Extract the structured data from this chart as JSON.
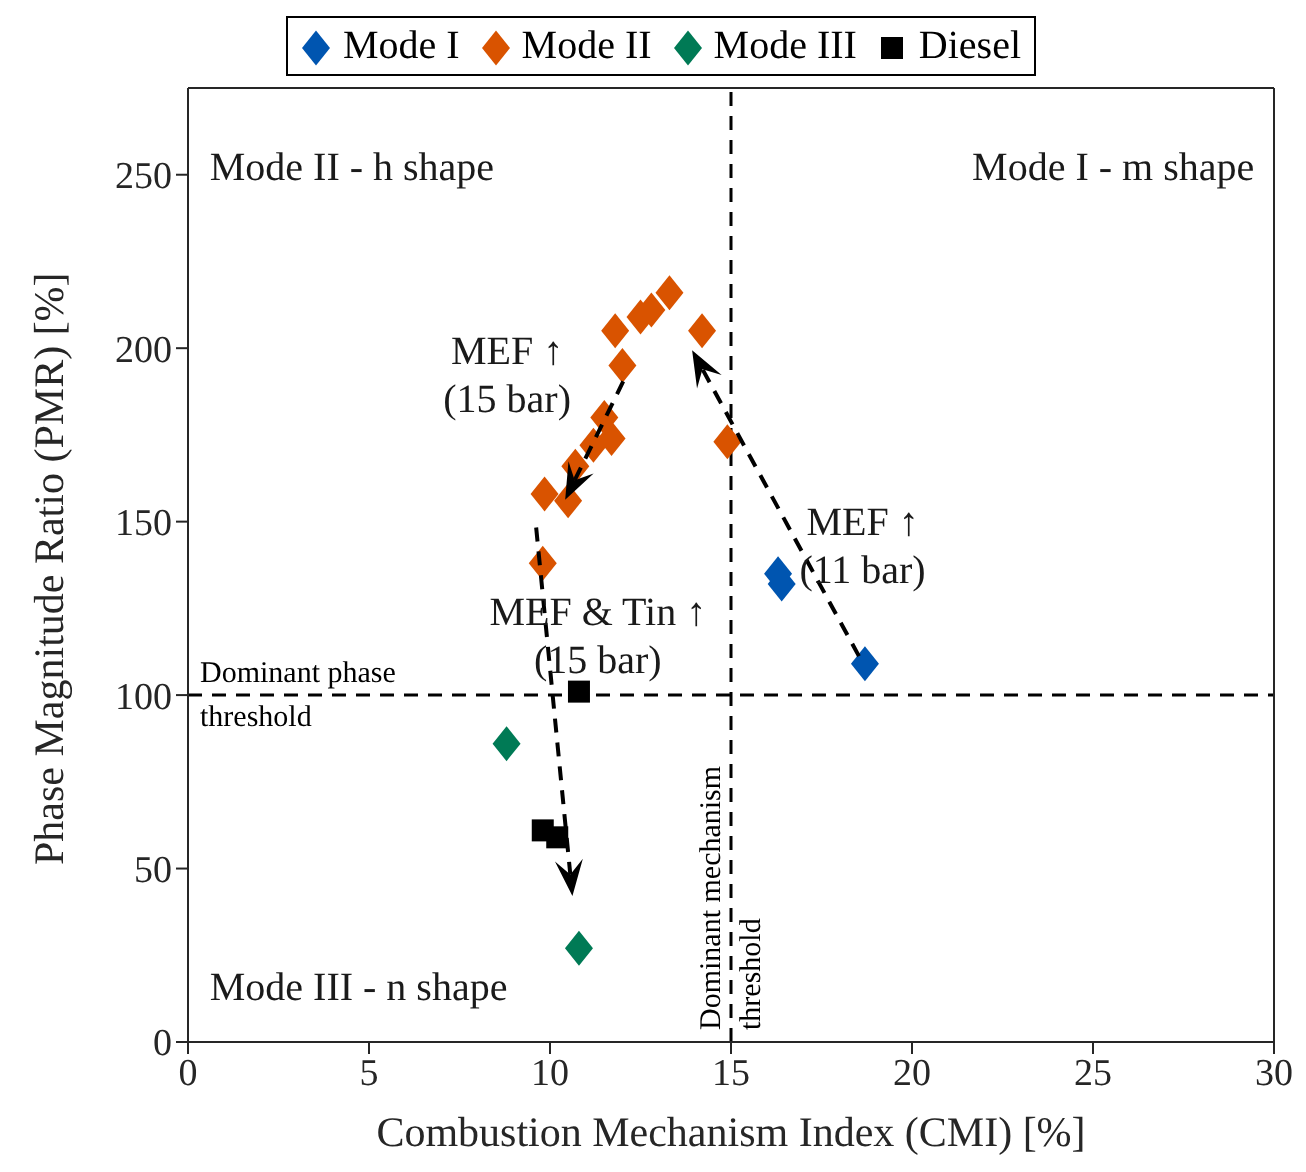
{
  "chart_data": {
    "type": "scatter",
    "xlabel": "Combustion Mechanism Index (CMI) [%]",
    "ylabel": "Phase Magnitude Ratio (PMR) [%]",
    "xlim": [
      0,
      30
    ],
    "xticks": [
      0,
      5,
      10,
      15,
      20,
      25,
      30
    ],
    "ylim": [
      0,
      275
    ],
    "yticks": [
      0,
      50,
      100,
      150,
      200,
      250
    ],
    "grid": false,
    "legend": "top",
    "series": [
      {
        "name": "Mode I",
        "color": "#0055b0",
        "marker": "diamond",
        "x": [
          16.3,
          16.4,
          18.7
        ],
        "values": [
          135,
          132,
          109
        ]
      },
      {
        "name": "Mode II",
        "color": "#d95300",
        "marker": "diamond",
        "x": [
          9.8,
          9.85,
          10.5,
          10.7,
          11.2,
          11.7,
          11.5,
          12.0,
          11.8,
          12.5,
          12.8,
          13.3,
          14.2,
          14.9
        ],
        "values": [
          138,
          158,
          156,
          166,
          172,
          174,
          180,
          195,
          205,
          209,
          211,
          216,
          205,
          173
        ]
      },
      {
        "name": "Mode III",
        "color": "#007a55",
        "marker": "diamond",
        "x": [
          8.8,
          10.8
        ],
        "values": [
          86,
          27
        ]
      },
      {
        "name": "Diesel",
        "color": "#000000",
        "marker": "square",
        "x": [
          10.8,
          9.8,
          10.2
        ],
        "values": [
          101,
          61,
          59
        ]
      }
    ],
    "ref_lines": [
      {
        "axis": "y",
        "value": 100,
        "label": "Dominant phase threshold",
        "color": "#000000",
        "line_style": "dashed"
      },
      {
        "axis": "x",
        "value": 15,
        "label": "Dominant mechanism threshold",
        "color": "#000000",
        "line_style": "dashed"
      }
    ],
    "annotations": [
      "Mode II - h shape",
      "Mode I - m shape",
      "Mode III - n shape",
      "MEF ↑\n(15 bar)",
      "MEF ↑\n(11 bar)",
      "MEF  & Tin ↑\n(15 bar)"
    ]
  }
}
